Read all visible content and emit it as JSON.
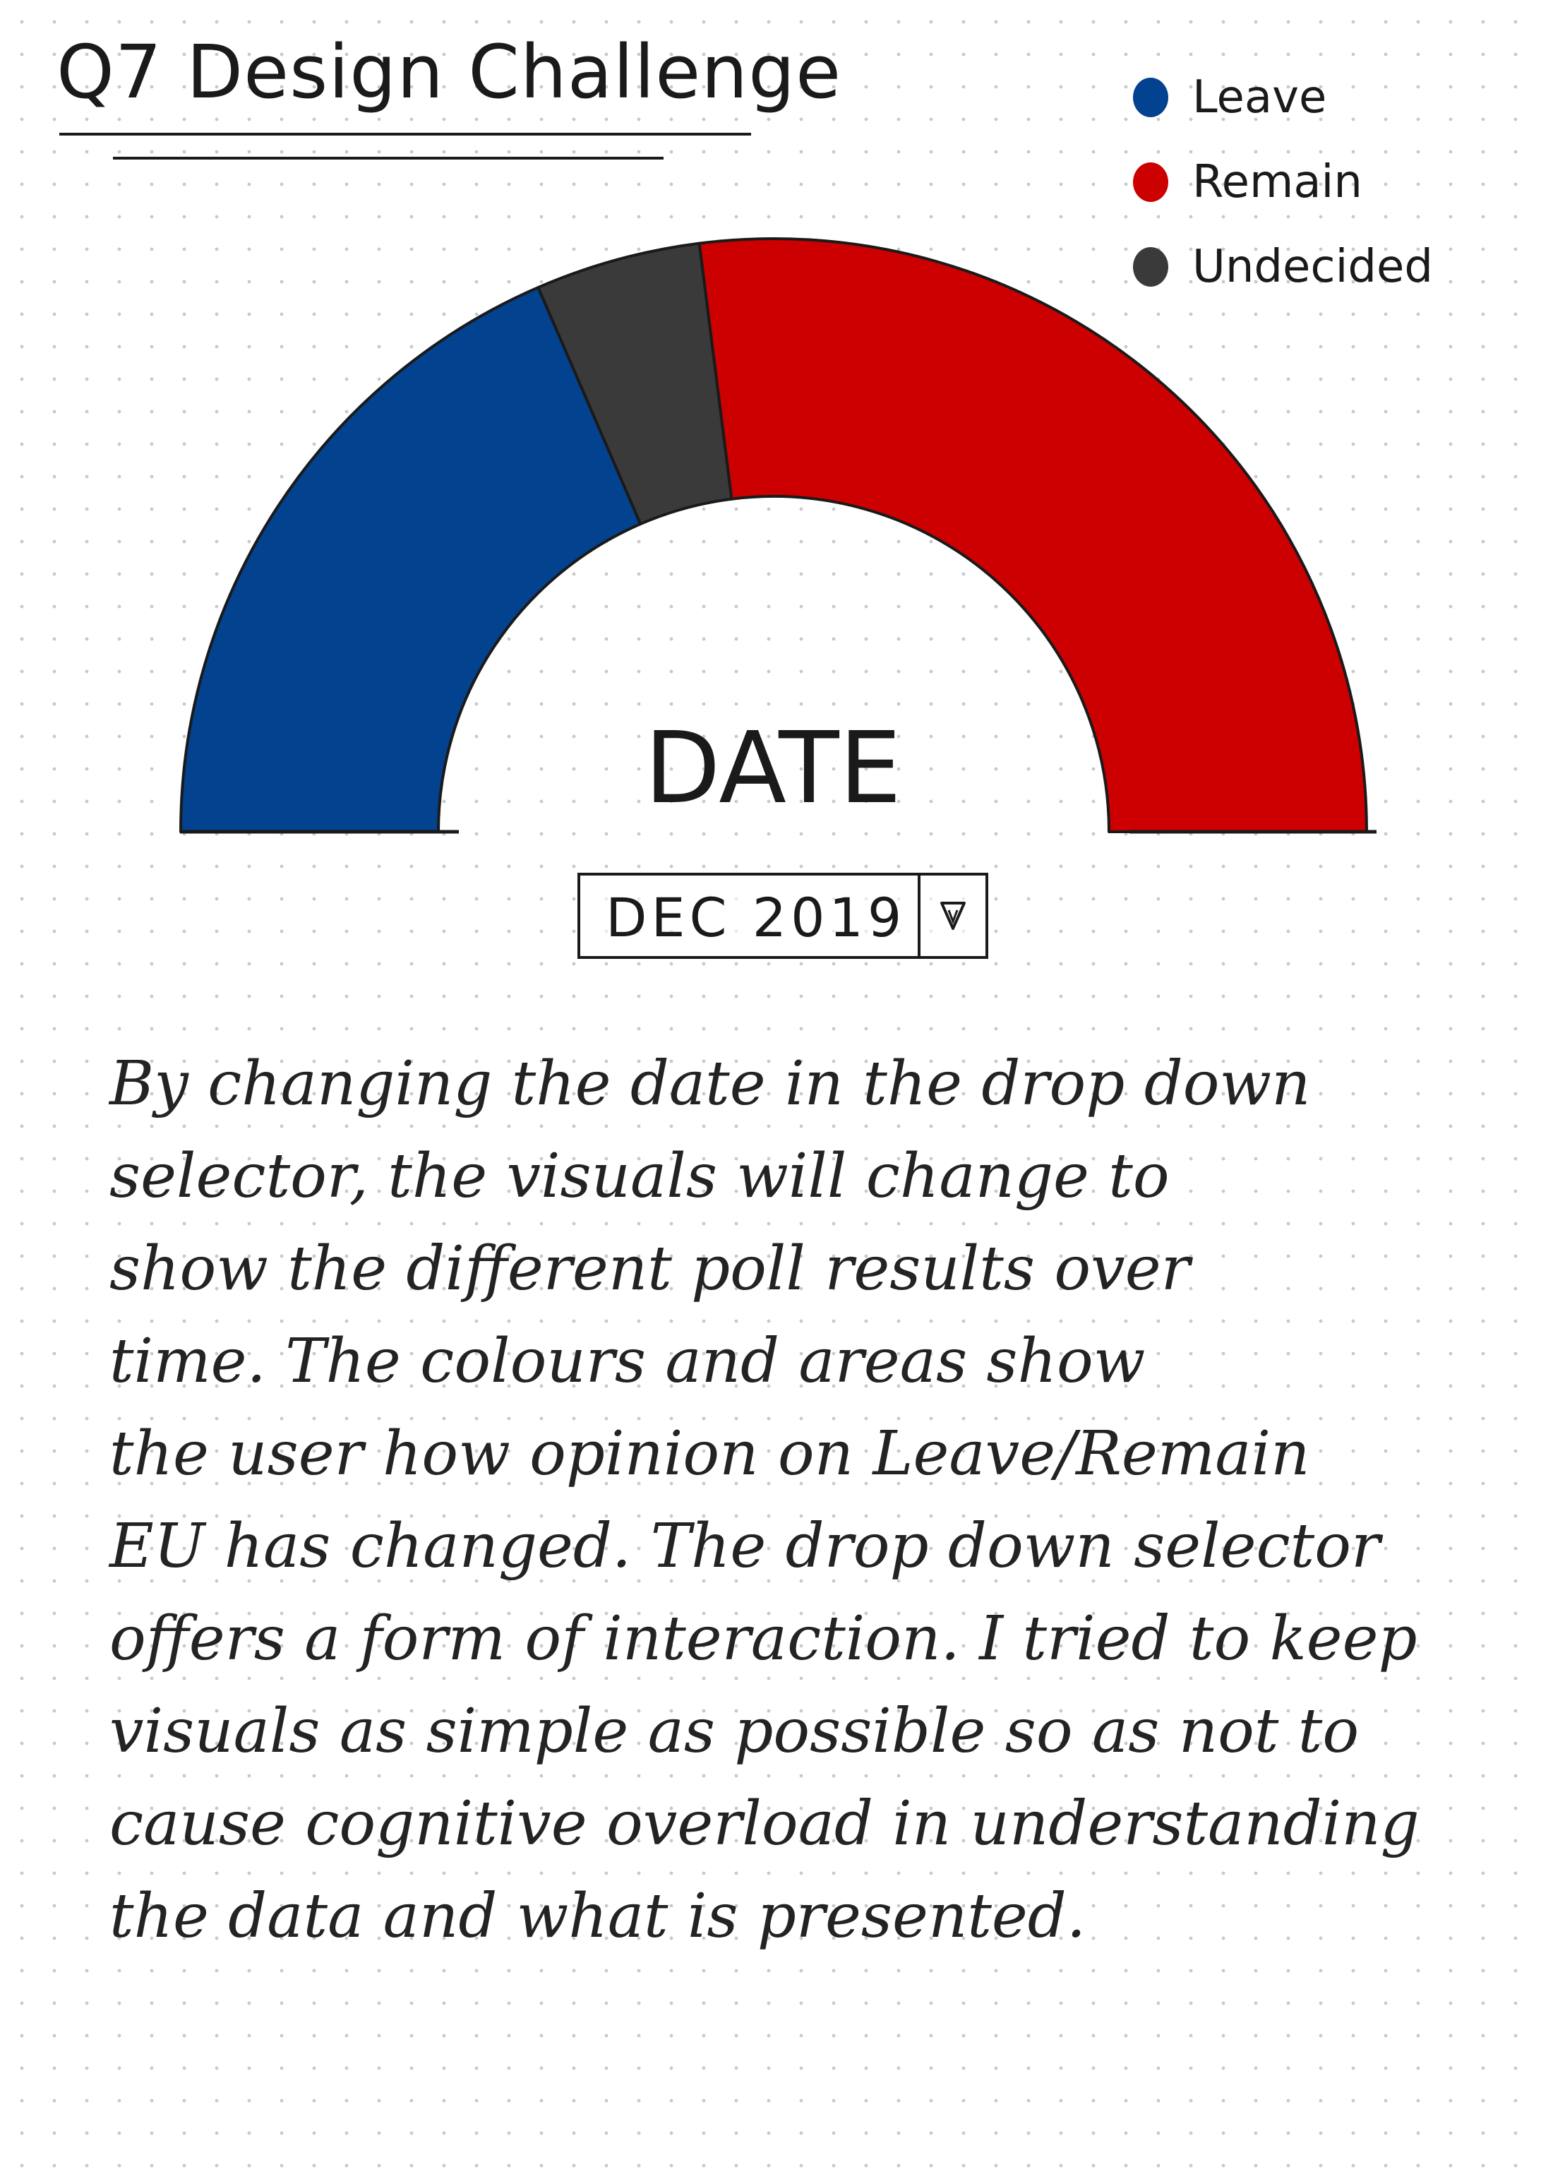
{
  "title": "Q7 Design Challenge",
  "legend": [
    {
      "label": "Leave",
      "color": "#03428f"
    },
    {
      "label": "Remain",
      "color": "#cc0000"
    },
    {
      "label": "Undecided",
      "color": "#3a3a3a"
    }
  ],
  "chart_data": {
    "type": "pie",
    "title": "",
    "categories": [
      "Leave",
      "Undecided",
      "Remain"
    ],
    "values": [
      37,
      9,
      54
    ],
    "colors": [
      "#03428f",
      "#3a3a3a",
      "#cc0000"
    ]
  },
  "center_label": "DATE",
  "date_selector": {
    "selected": "DEC 2019"
  },
  "icons": {
    "dropdown_toggle": "chevron-down-icon"
  },
  "description": [
    "By changing the date in the drop down",
    "selector, the visuals will change to",
    "show the different poll results over",
    "time. The colours and areas show",
    "the user how opinion on Leave/Remain",
    "EU has changed. The drop down selector",
    "offers a form of interaction. I tried to keep",
    "visuals as simple as possible so as not to",
    "cause cognitive overload in understanding",
    "the data and what is presented."
  ]
}
